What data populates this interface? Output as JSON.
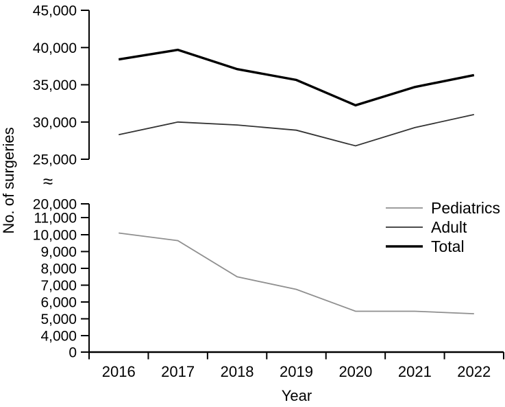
{
  "figure": {
    "ylabel": "No. of surgeries",
    "xlabel": "Year",
    "axis_break_symbol": "≈"
  },
  "chart_data": {
    "type": "line",
    "title": "",
    "xlabel": "Year",
    "ylabel": "No. of surgeries",
    "x": [
      2016,
      2017,
      2018,
      2019,
      2020,
      2021,
      2022
    ],
    "series": [
      {
        "name": "Pediatrics",
        "color": "#8f8f8f",
        "stroke_width": 1.8,
        "values": [
          10100,
          9650,
          7500,
          6750,
          5450,
          5450,
          5300
        ]
      },
      {
        "name": "Adult",
        "color": "#333333",
        "stroke_width": 1.8,
        "values": [
          28300,
          30000,
          29600,
          28900,
          26800,
          29250,
          31000
        ]
      },
      {
        "name": "Total",
        "color": "#000000",
        "stroke_width": 3.4,
        "values": [
          38400,
          39700,
          37100,
          35650,
          32250,
          34700,
          36300
        ]
      }
    ],
    "y_axis": {
      "broken": true,
      "top_segment_ticks": [
        45000,
        40000,
        35000,
        30000,
        25000
      ],
      "bottom_segment_ticks": [
        20000,
        11000,
        10000,
        9000,
        8000,
        7000,
        6000,
        5000,
        4000,
        0
      ]
    },
    "legend": [
      "Pediatrics",
      "Adult",
      "Total"
    ],
    "legend_position": "right-middle",
    "grid": false,
    "axis_color": "#000000"
  }
}
